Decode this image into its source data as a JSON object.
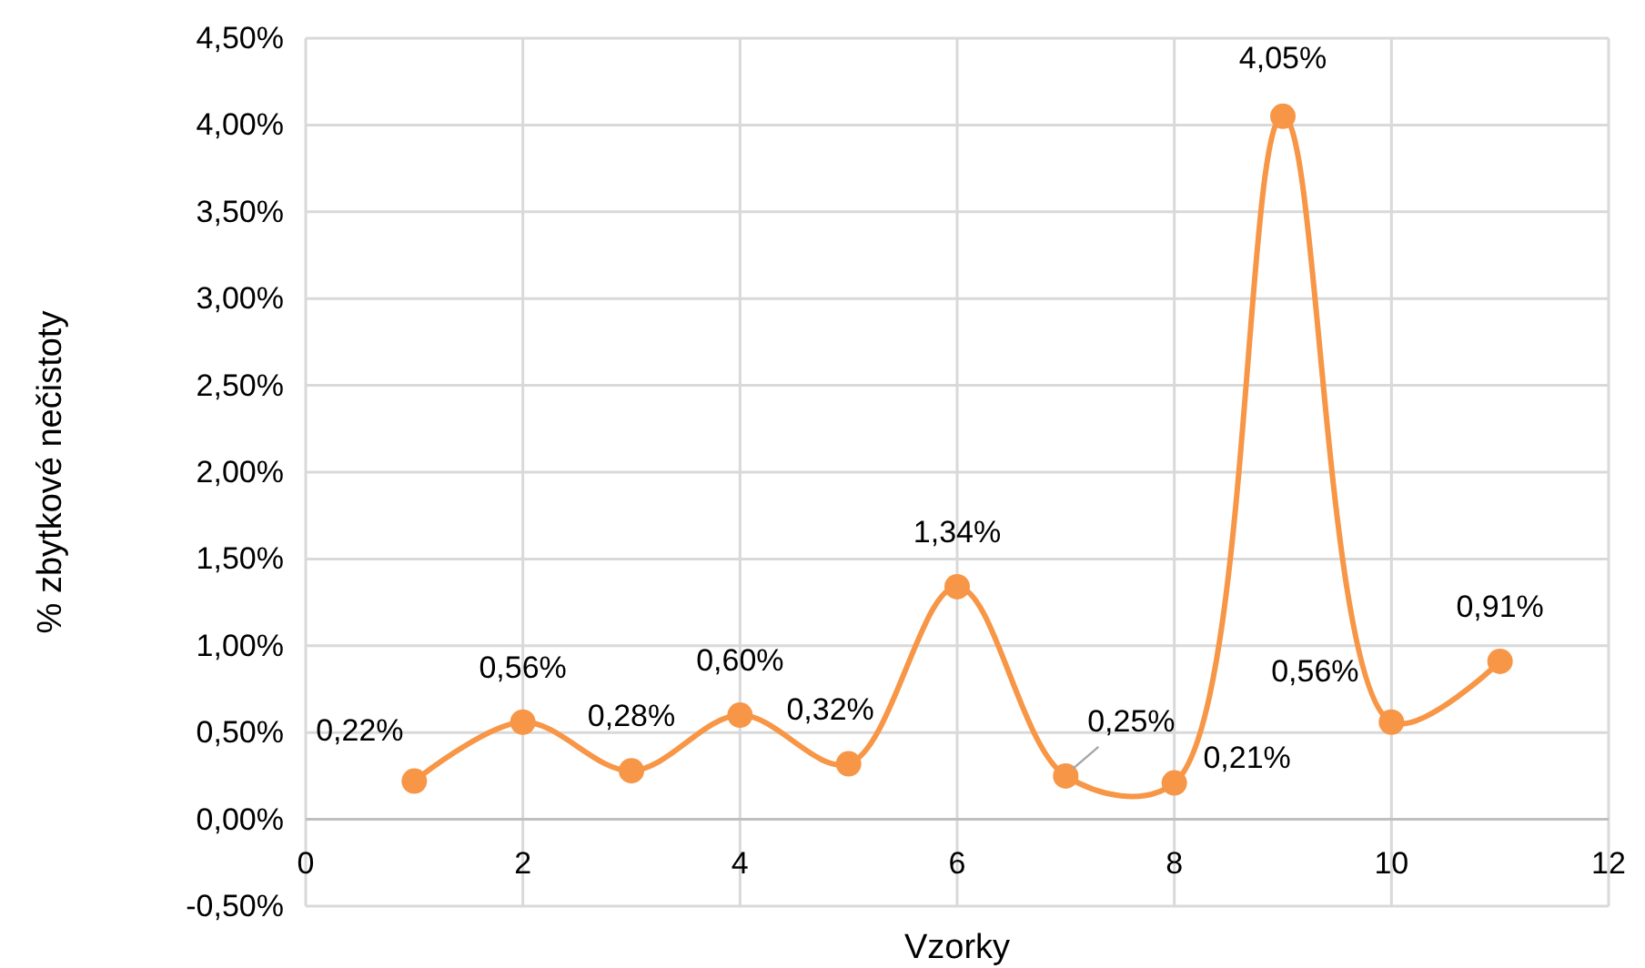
{
  "chart_data": {
    "type": "line",
    "xlabel": "Vzorky",
    "ylabel": "% zbytkové nečistoty",
    "x": [
      1,
      2,
      3,
      4,
      5,
      6,
      7,
      8,
      9,
      10,
      11
    ],
    "series": [
      {
        "color": "#f79646",
        "values": [
          0.22,
          0.56,
          0.28,
          0.6,
          0.32,
          1.34,
          0.25,
          0.21,
          4.05,
          0.56,
          0.91
        ],
        "value_labels": [
          "0,22%",
          "0,56%",
          "0,28%",
          "0,60%",
          "0,32%",
          "1,34%",
          "0,25%",
          "0,21%",
          "4,05%",
          "0,56%",
          "0,91%"
        ]
      }
    ],
    "xlim": [
      0,
      12
    ],
    "xticks": [
      0,
      2,
      4,
      6,
      8,
      10,
      12
    ],
    "ylim": [
      -0.5,
      4.5
    ],
    "yticks": [
      {
        "value": -0.5,
        "label": "-0,50%"
      },
      {
        "value": 0,
        "label": "0,00%"
      },
      {
        "value": 0.5,
        "label": "0,50%"
      },
      {
        "value": 1,
        "label": "1,00%"
      },
      {
        "value": 1.5,
        "label": "1,50%"
      },
      {
        "value": 2,
        "label": "2,00%"
      },
      {
        "value": 2.5,
        "label": "2,50%"
      },
      {
        "value": 3,
        "label": "3,00%"
      },
      {
        "value": 3.5,
        "label": "3,50%"
      },
      {
        "value": 4,
        "label": "4,00%"
      },
      {
        "value": 4.5,
        "label": "4,50%"
      }
    ],
    "grid": true,
    "marker": "circle",
    "line_style": "solid"
  }
}
